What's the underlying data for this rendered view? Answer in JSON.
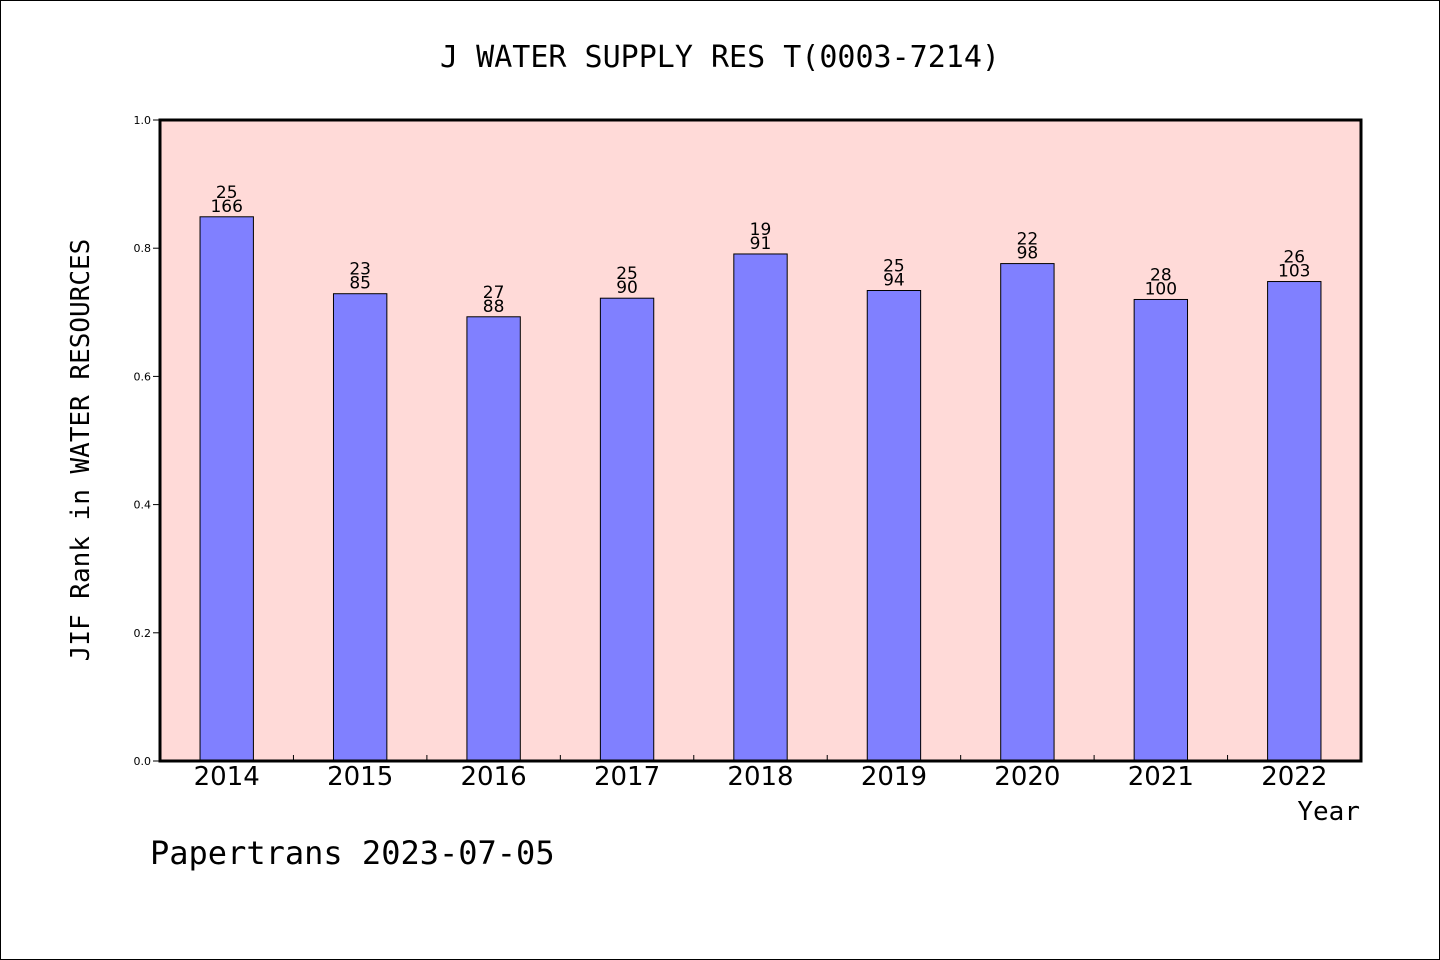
{
  "chart_data": {
    "type": "bar",
    "title": "J WATER SUPPLY RES T(0003-7214)",
    "xlabel": "Year",
    "ylabel": "JIF Rank in WATER RESOURCES",
    "ylim": [
      0,
      1.0
    ],
    "yticks": [
      "0.0",
      "0.2",
      "0.4",
      "0.6",
      "0.8",
      "1.0"
    ],
    "grid": false,
    "colors": {
      "plot_background": "#ffdad8",
      "bar_fill": "#8080ff",
      "bar_stroke": "#000000"
    },
    "categories": [
      "2014",
      "2015",
      "2016",
      "2017",
      "2018",
      "2019",
      "2020",
      "2021",
      "2022"
    ],
    "values": [
      0.849,
      0.729,
      0.693,
      0.722,
      0.791,
      0.734,
      0.776,
      0.72,
      0.748
    ],
    "rank_labels": [
      {
        "rank": "25",
        "total": "166"
      },
      {
        "rank": "23",
        "total": "85"
      },
      {
        "rank": "27",
        "total": "88"
      },
      {
        "rank": "25",
        "total": "90"
      },
      {
        "rank": "19",
        "total": "91"
      },
      {
        "rank": "25",
        "total": "94"
      },
      {
        "rank": "22",
        "total": "98"
      },
      {
        "rank": "28",
        "total": "100"
      },
      {
        "rank": "26",
        "total": "103"
      }
    ]
  },
  "footer": {
    "source": "Papertrans 2023-07-05"
  }
}
